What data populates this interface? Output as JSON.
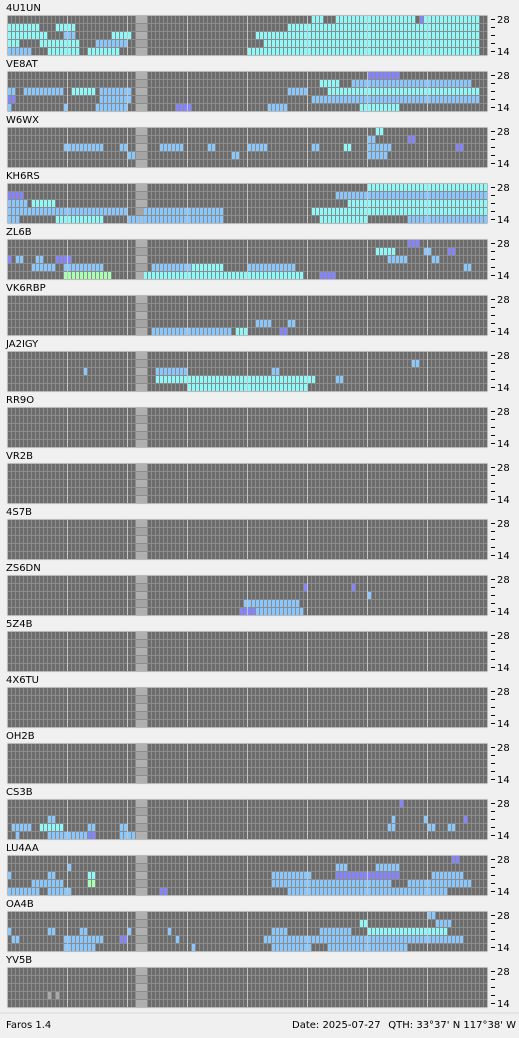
{
  "app": {
    "name": "Faros 1.4",
    "date": "Date: 2025-07-27",
    "qth": "QTH: 33°37' N  117°38' W"
  },
  "band_axis": {
    "top": "28",
    "bottom": "14"
  },
  "columns": 120,
  "rows": 5,
  "now_column": 32,
  "palette": {
    "c": "#8cf8f8",
    "b": "#88c8ff",
    "p": "#8484ff",
    "g": "#a8ffb0",
    "l": "#a8a8a8"
  },
  "stations": [
    {
      "name": "4U1UN",
      "spots": [
        [
          0,
          76,
          3,
          "c"
        ],
        [
          0,
          82,
          20,
          "c"
        ],
        [
          0,
          103,
          1,
          "p"
        ],
        [
          0,
          104,
          14,
          "c"
        ],
        [
          1,
          0,
          8,
          "c"
        ],
        [
          1,
          12,
          5,
          "c"
        ],
        [
          1,
          70,
          48,
          "c"
        ],
        [
          2,
          0,
          10,
          "c"
        ],
        [
          2,
          14,
          3,
          "b"
        ],
        [
          2,
          26,
          5,
          "c"
        ],
        [
          2,
          62,
          56,
          "c"
        ],
        [
          3,
          0,
          3,
          "c"
        ],
        [
          3,
          8,
          10,
          "c"
        ],
        [
          3,
          22,
          8,
          "b"
        ],
        [
          3,
          64,
          54,
          "c"
        ],
        [
          4,
          0,
          6,
          "b"
        ],
        [
          4,
          10,
          8,
          "c"
        ],
        [
          4,
          20,
          8,
          "c"
        ],
        [
          4,
          60,
          58,
          "c"
        ]
      ]
    },
    {
      "name": "VE8AT",
      "spots": [
        [
          0,
          90,
          8,
          "p"
        ],
        [
          1,
          78,
          5,
          "c"
        ],
        [
          1,
          86,
          30,
          "b"
        ],
        [
          2,
          0,
          2,
          "b"
        ],
        [
          2,
          4,
          10,
          "b"
        ],
        [
          2,
          16,
          6,
          "c"
        ],
        [
          2,
          23,
          8,
          "b"
        ],
        [
          2,
          70,
          5,
          "b"
        ],
        [
          2,
          80,
          38,
          "c"
        ],
        [
          3,
          0,
          2,
          "p"
        ],
        [
          3,
          23,
          8,
          "b"
        ],
        [
          3,
          76,
          42,
          "b"
        ],
        [
          4,
          0,
          1,
          "b"
        ],
        [
          4,
          14,
          1,
          "b"
        ],
        [
          4,
          22,
          8,
          "b"
        ],
        [
          4,
          42,
          4,
          "p"
        ],
        [
          4,
          65,
          5,
          "b"
        ],
        [
          4,
          88,
          10,
          "c"
        ]
      ]
    },
    {
      "name": "W6WX",
      "spots": [
        [
          0,
          92,
          2,
          "c"
        ],
        [
          1,
          90,
          2,
          "b"
        ],
        [
          1,
          100,
          2,
          "p"
        ],
        [
          2,
          14,
          10,
          "b"
        ],
        [
          2,
          28,
          2,
          "b"
        ],
        [
          2,
          38,
          6,
          "b"
        ],
        [
          2,
          50,
          2,
          "b"
        ],
        [
          2,
          60,
          5,
          "b"
        ],
        [
          2,
          76,
          2,
          "b"
        ],
        [
          2,
          84,
          2,
          "c"
        ],
        [
          2,
          90,
          6,
          "b"
        ],
        [
          2,
          112,
          2,
          "p"
        ],
        [
          3,
          30,
          2,
          "b"
        ],
        [
          3,
          56,
          2,
          "b"
        ],
        [
          3,
          90,
          5,
          "b"
        ]
      ]
    },
    {
      "name": "KH6RS",
      "spots": [
        [
          0,
          90,
          30,
          "c"
        ],
        [
          1,
          0,
          4,
          "p"
        ],
        [
          1,
          82,
          38,
          "b"
        ],
        [
          2,
          0,
          5,
          "b"
        ],
        [
          2,
          6,
          6,
          "c"
        ],
        [
          2,
          85,
          35,
          "c"
        ],
        [
          3,
          0,
          30,
          "b"
        ],
        [
          3,
          34,
          20,
          "b"
        ],
        [
          3,
          76,
          44,
          "c"
        ],
        [
          4,
          0,
          3,
          "b"
        ],
        [
          4,
          12,
          12,
          "c"
        ],
        [
          4,
          30,
          24,
          "b"
        ],
        [
          4,
          78,
          12,
          "c"
        ],
        [
          4,
          100,
          20,
          "b"
        ]
      ]
    },
    {
      "name": "ZL6B",
      "spots": [
        [
          0,
          100,
          3,
          "p"
        ],
        [
          1,
          92,
          5,
          "c"
        ],
        [
          1,
          104,
          2,
          "b"
        ],
        [
          1,
          110,
          2,
          "p"
        ],
        [
          2,
          0,
          1,
          "p"
        ],
        [
          2,
          2,
          2,
          "b"
        ],
        [
          2,
          7,
          2,
          "b"
        ],
        [
          2,
          12,
          4,
          "p"
        ],
        [
          2,
          95,
          5,
          "b"
        ],
        [
          2,
          106,
          2,
          "b"
        ],
        [
          3,
          6,
          6,
          "b"
        ],
        [
          3,
          14,
          10,
          "b"
        ],
        [
          3,
          36,
          10,
          "b"
        ],
        [
          3,
          46,
          8,
          "c"
        ],
        [
          3,
          60,
          12,
          "b"
        ],
        [
          3,
          114,
          2,
          "b"
        ],
        [
          4,
          14,
          12,
          "g"
        ],
        [
          4,
          34,
          40,
          "c"
        ],
        [
          4,
          78,
          4,
          "p"
        ]
      ]
    },
    {
      "name": "VK6RBP",
      "spots": [
        [
          3,
          62,
          4,
          "b"
        ],
        [
          3,
          70,
          2,
          "b"
        ],
        [
          4,
          36,
          20,
          "b"
        ],
        [
          4,
          57,
          3,
          "c"
        ],
        [
          4,
          68,
          2,
          "p"
        ]
      ]
    },
    {
      "name": "JA2IGY",
      "spots": [
        [
          1,
          101,
          2,
          "b"
        ],
        [
          2,
          19,
          1,
          "b"
        ],
        [
          2,
          37,
          8,
          "b"
        ],
        [
          2,
          66,
          2,
          "b"
        ],
        [
          3,
          37,
          40,
          "c"
        ],
        [
          3,
          82,
          2,
          "b"
        ],
        [
          4,
          45,
          30,
          "c"
        ]
      ]
    },
    {
      "name": "RR9O",
      "spots": []
    },
    {
      "name": "VR2B",
      "spots": []
    },
    {
      "name": "4S7B",
      "spots": []
    },
    {
      "name": "ZS6DN",
      "spots": [
        [
          1,
          74,
          1,
          "p"
        ],
        [
          1,
          86,
          1,
          "p"
        ],
        [
          2,
          90,
          1,
          "b"
        ],
        [
          3,
          59,
          14,
          "b"
        ],
        [
          4,
          58,
          4,
          "p"
        ],
        [
          4,
          62,
          12,
          "b"
        ]
      ]
    },
    {
      "name": "5Z4B",
      "spots": []
    },
    {
      "name": "4X6TU",
      "spots": []
    },
    {
      "name": "OH2B",
      "spots": []
    },
    {
      "name": "CS3B",
      "spots": [
        [
          0,
          98,
          1,
          "p"
        ],
        [
          2,
          10,
          2,
          "b"
        ],
        [
          2,
          96,
          1,
          "b"
        ],
        [
          2,
          104,
          1,
          "b"
        ],
        [
          2,
          114,
          1,
          "p"
        ],
        [
          3,
          1,
          5,
          "b"
        ],
        [
          3,
          8,
          6,
          "c"
        ],
        [
          3,
          20,
          2,
          "b"
        ],
        [
          3,
          28,
          2,
          "b"
        ],
        [
          3,
          95,
          2,
          "b"
        ],
        [
          3,
          105,
          2,
          "b"
        ],
        [
          3,
          110,
          2,
          "b"
        ],
        [
          4,
          2,
          1,
          "b"
        ],
        [
          4,
          10,
          10,
          "b"
        ],
        [
          4,
          20,
          2,
          "p"
        ],
        [
          4,
          28,
          4,
          "b"
        ]
      ]
    },
    {
      "name": "LU4AA",
      "spots": [
        [
          0,
          111,
          2,
          "p"
        ],
        [
          1,
          15,
          1,
          "b"
        ],
        [
          1,
          82,
          3,
          "b"
        ],
        [
          1,
          92,
          6,
          "b"
        ],
        [
          2,
          0,
          1,
          "b"
        ],
        [
          2,
          10,
          2,
          "b"
        ],
        [
          2,
          20,
          2,
          "c"
        ],
        [
          2,
          66,
          10,
          "b"
        ],
        [
          2,
          82,
          16,
          "p"
        ],
        [
          2,
          106,
          8,
          "b"
        ],
        [
          3,
          6,
          8,
          "b"
        ],
        [
          3,
          20,
          2,
          "g"
        ],
        [
          3,
          66,
          30,
          "b"
        ],
        [
          3,
          100,
          16,
          "b"
        ],
        [
          4,
          0,
          8,
          "b"
        ],
        [
          4,
          10,
          6,
          "b"
        ],
        [
          4,
          38,
          2,
          "p"
        ],
        [
          4,
          70,
          40,
          "b"
        ]
      ]
    },
    {
      "name": "OA4B",
      "spots": [
        [
          0,
          105,
          2,
          "b"
        ],
        [
          1,
          88,
          2,
          "c"
        ],
        [
          1,
          107,
          4,
          "b"
        ],
        [
          2,
          0,
          1,
          "b"
        ],
        [
          2,
          10,
          2,
          "b"
        ],
        [
          2,
          18,
          2,
          "b"
        ],
        [
          2,
          30,
          1,
          "b"
        ],
        [
          2,
          40,
          1,
          "b"
        ],
        [
          2,
          66,
          4,
          "b"
        ],
        [
          2,
          78,
          8,
          "b"
        ],
        [
          2,
          90,
          20,
          "c"
        ],
        [
          3,
          1,
          2,
          "b"
        ],
        [
          3,
          14,
          10,
          "b"
        ],
        [
          3,
          28,
          2,
          "p"
        ],
        [
          3,
          42,
          1,
          "b"
        ],
        [
          3,
          64,
          50,
          "b"
        ],
        [
          4,
          14,
          8,
          "b"
        ],
        [
          4,
          46,
          1,
          "b"
        ],
        [
          4,
          66,
          10,
          "b"
        ],
        [
          4,
          80,
          20,
          "b"
        ]
      ]
    },
    {
      "name": "YV5B",
      "spots": [
        [
          3,
          10,
          1,
          "l"
        ],
        [
          3,
          12,
          1,
          "l"
        ]
      ]
    }
  ]
}
